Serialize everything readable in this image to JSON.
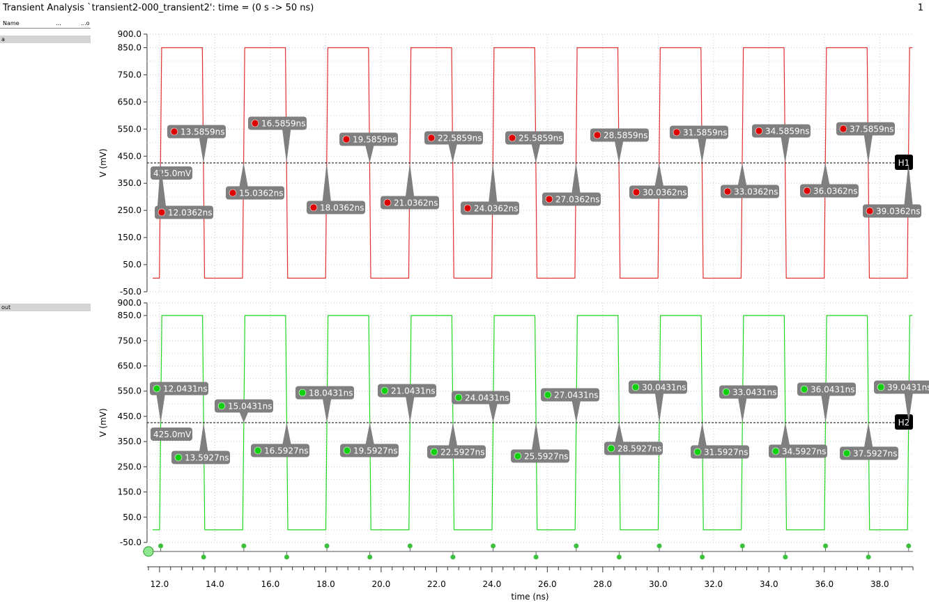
{
  "window": {
    "title": "Transient Analysis `transient2-000_transient2': time = (0 s -> 50 ns)",
    "page_number": "1"
  },
  "sidebar": {
    "header": {
      "name": "Name",
      "col2": "...",
      "col3": "...o"
    },
    "signals": [
      "a",
      "out"
    ]
  },
  "colors": {
    "trace_a": "#e03030",
    "trace_out": "#22d622",
    "marker_a": "#dd0000",
    "marker_out": "#10d010",
    "label_bg": "#7f7f7f",
    "hmarker_bg": "#000000"
  },
  "chart_data": [
    {
      "type": "line",
      "signal": "a",
      "xlabel": "time (ns)",
      "ylabel": "V (mV)",
      "xlim": [
        11.55,
        39.2
      ],
      "ylim": [
        -50.0,
        900.0
      ],
      "yticks": [
        "900.0",
        "850.0",
        "750.0",
        "650.0",
        "550.0",
        "450.0",
        "350.0",
        "250.0",
        "150.0",
        "50.0",
        "-50.0"
      ],
      "yticks_values": [
        900,
        850,
        750,
        650,
        550,
        450,
        350,
        250,
        150,
        50,
        -50
      ],
      "low": 0,
      "high": 850,
      "rises": [
        12.0362,
        15.0362,
        18.0362,
        21.0362,
        24.0362,
        27.0362,
        30.0362,
        33.0362,
        36.0362,
        39.0362
      ],
      "falls": [
        13.5859,
        16.5859,
        19.5859,
        22.5859,
        25.5859,
        28.5859,
        31.5859,
        34.5859,
        37.5859
      ],
      "threshold": {
        "value": 425.0,
        "label": "425.0mV",
        "marker": "H1"
      },
      "crossing_labels": {
        "falls": [
          "13.5859ns",
          "16.5859ns",
          "19.5859ns",
          "22.5859ns",
          "25.5859ns",
          "28.5859ns",
          "31.5859ns",
          "34.5859ns",
          "37.5859ns"
        ],
        "rises": [
          "12.0362ns",
          "15.0362ns",
          "18.0362ns",
          "21.0362ns",
          "24.0362ns",
          "27.0362ns",
          "30.0362ns",
          "33.0362ns",
          "36.0362ns",
          "39.0362ns"
        ]
      }
    },
    {
      "type": "line",
      "signal": "out",
      "xlabel": "time (ns)",
      "ylabel": "V (mV)",
      "xlim": [
        11.55,
        39.2
      ],
      "ylim": [
        -50.0,
        900.0
      ],
      "yticks": [
        "900.0",
        "850.0",
        "750.0",
        "650.0",
        "550.0",
        "450.0",
        "350.0",
        "250.0",
        "150.0",
        "50.0",
        "-50.0"
      ],
      "yticks_values": [
        900,
        850,
        750,
        650,
        550,
        450,
        350,
        250,
        150,
        50,
        -50
      ],
      "low": 0,
      "high": 850,
      "rises": [
        12.0431,
        15.0431,
        18.0431,
        21.0431,
        24.0431,
        27.0431,
        30.0431,
        33.0431,
        36.0431,
        39.0431
      ],
      "falls": [
        13.5927,
        16.5927,
        19.5927,
        22.5927,
        25.5927,
        28.5927,
        31.5927,
        34.5927,
        37.5927
      ],
      "threshold": {
        "value": 425.0,
        "label": "425.0mV",
        "marker": "H2"
      },
      "crossing_labels": {
        "rises": [
          "12.0431ns",
          "15.0431ns",
          "18.0431ns",
          "21.0431ns",
          "24.0431ns",
          "27.0431ns",
          "30.0431ns",
          "33.0431ns",
          "36.0431ns",
          "39.0431ns"
        ],
        "falls": [
          "13.5927ns",
          "16.5927ns",
          "19.5927ns",
          "22.5927ns",
          "25.5927ns",
          "28.5927ns",
          "31.5927ns",
          "34.5927ns",
          "37.5927ns"
        ]
      }
    }
  ],
  "xaxis": {
    "label": "time (ns)",
    "ticks": [
      "12.0",
      "14.0",
      "16.0",
      "18.0",
      "20.0",
      "22.0",
      "24.0",
      "26.0",
      "28.0",
      "30.0",
      "32.0",
      "34.0",
      "36.0",
      "38.0"
    ],
    "tick_values": [
      12,
      14,
      16,
      18,
      20,
      22,
      24,
      26,
      28,
      30,
      32,
      34,
      36,
      38
    ]
  }
}
